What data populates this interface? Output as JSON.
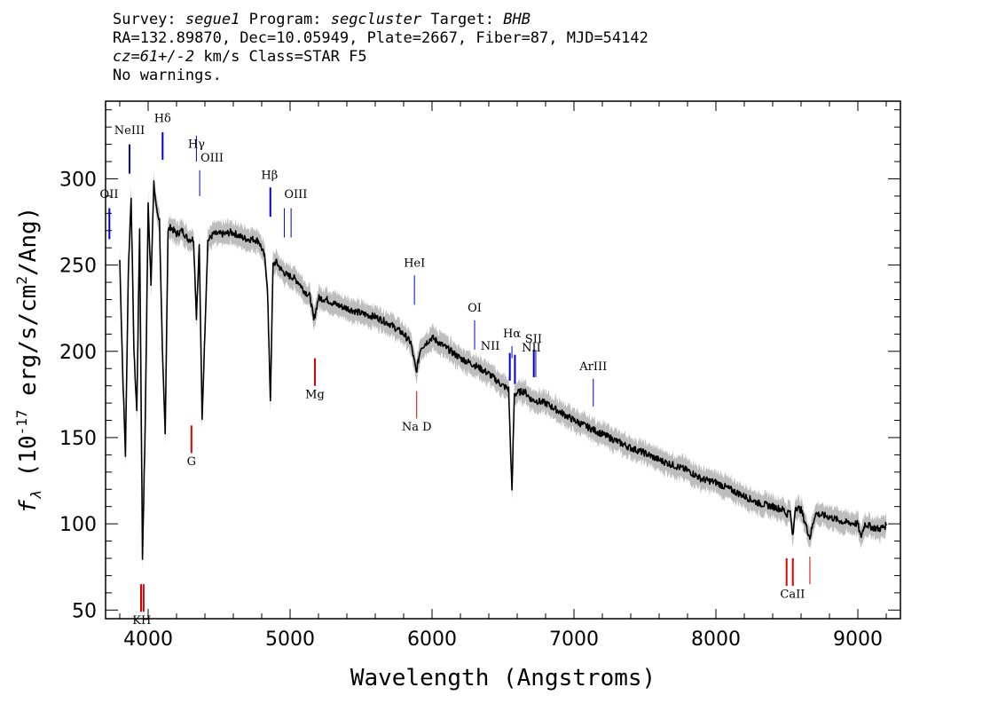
{
  "header": {
    "survey_label": "Survey:",
    "survey": "segue1",
    "program_label": "Program:",
    "program": "segcluster",
    "target_label": "Target:",
    "target": "BHB",
    "line2": "RA=132.89870, Dec=10.05949, Plate=2667, Fiber=87, MJD=54142",
    "redshift": "cz=61+/-2",
    "redshift_units": "km/s Class=STAR F5",
    "warnings": "No warnings."
  },
  "chart_data": {
    "type": "line",
    "title": "",
    "xlabel": "Wavelength (Angstroms)",
    "ylabel_prefix": "f",
    "ylabel_subscript": "λ",
    "ylabel_open": " (10",
    "ylabel_exp": "-17",
    "ylabel_mid": " erg/s/cm",
    "ylabel_exp2": "2",
    "ylabel_close": "/Ang)",
    "xlim": [
      3700,
      9300
    ],
    "ylim": [
      45,
      345
    ],
    "x_ticks": [
      4000,
      5000,
      6000,
      7000,
      8000,
      9000
    ],
    "x_tick_labels": [
      "4000",
      "5000",
      "6000",
      "7000",
      "8000",
      "9000"
    ],
    "y_ticks": [
      50,
      100,
      150,
      200,
      250,
      300
    ],
    "y_tick_labels": [
      "50",
      "100",
      "150",
      "200",
      "250",
      "300"
    ],
    "x_minor_step": 200,
    "y_minor_step": 10,
    "colors": {
      "spectrum": "#000000",
      "error_band": "#bdbdbd",
      "emission": "#0000cc",
      "absorption": "#dd0000"
    },
    "series": [
      {
        "x": [
          3800,
          3820,
          3840,
          3860,
          3880,
          3900,
          3920,
          3940,
          3960,
          3980,
          4000,
          4020,
          4040,
          4060,
          4080,
          4100,
          4120,
          4140,
          4160,
          4200,
          4240,
          4280,
          4320,
          4340,
          4360,
          4380,
          4420,
          4460,
          4500,
          4540,
          4580,
          4620,
          4660,
          4700,
          4740,
          4780,
          4820,
          4840,
          4861,
          4880,
          4900,
          4940,
          4980,
          5020,
          5060,
          5100,
          5140,
          5167,
          5200,
          5260,
          5300,
          5360,
          5400,
          5500,
          5600,
          5700,
          5800,
          5850,
          5889,
          5920,
          6000,
          6100,
          6200,
          6300,
          6400,
          6500,
          6540,
          6563,
          6580,
          6600,
          6650,
          6700,
          6800,
          6900,
          7000,
          7100,
          7200,
          7300,
          7400,
          7500,
          7600,
          7700,
          7800,
          7900,
          8000,
          8100,
          8200,
          8300,
          8400,
          8480,
          8498,
          8520,
          8542,
          8560,
          8600,
          8662,
          8700,
          8800,
          8900,
          9000,
          9020,
          9050,
          9100,
          9150,
          9200
        ],
        "y": [
          253,
          190,
          140,
          245,
          290,
          200,
          165,
          272,
          80,
          160,
          285,
          240,
          297,
          282,
          276,
          200,
          152,
          270,
          272,
          268,
          270,
          265,
          265,
          220,
          262,
          160,
          264,
          268,
          268,
          268,
          269,
          268,
          266,
          265,
          265,
          264,
          255,
          238,
          172,
          250,
          252,
          247,
          244,
          243,
          240,
          235,
          232,
          218,
          231,
          230,
          228,
          226,
          225,
          222,
          220,
          216,
          210,
          205,
          188,
          202,
          208,
          202,
          196,
          192,
          187,
          180,
          178,
          118,
          175,
          176,
          177,
          172,
          170,
          165,
          160,
          156,
          152,
          148,
          144,
          141,
          137,
          134,
          131,
          126,
          124,
          120,
          116,
          112,
          110,
          108,
          105,
          109,
          92,
          110,
          108,
          92,
          106,
          104,
          101,
          100,
          92,
          100,
          98,
          97,
          99
        ]
      }
    ],
    "line_markers": [
      {
        "label": "NeIII",
        "x": 3869,
        "y0": 303,
        "y1": 320,
        "color": "#0000cc",
        "w": 2,
        "lx": 3869,
        "ly": 326
      },
      {
        "label": "Hδ",
        "x": 4102,
        "y0": 311,
        "y1": 327,
        "color": "#0000cc",
        "w": 2,
        "lx": 4102,
        "ly": 333
      },
      {
        "label": "Hγ",
        "x": 4340,
        "y0": 310,
        "y1": 325,
        "color": "#0000cc",
        "w": 1,
        "lx": 4340,
        "ly": 318
      },
      {
        "label": "OIII",
        "x": 4363,
        "y0": 290,
        "y1": 305,
        "color": "#0000cc",
        "w": 1,
        "lx": 4450,
        "ly": 310
      },
      {
        "label": "Hβ",
        "x": 4861,
        "y0": 278,
        "y1": 295,
        "color": "#0000cc",
        "w": 2,
        "lx": 4855,
        "ly": 300
      },
      {
        "label": "OIII",
        "x": 4959,
        "y0": 266,
        "y1": 283,
        "color": "#0000cc",
        "w": 1,
        "lx": 5040,
        "ly": 289
      },
      {
        "label": "",
        "x": 5007,
        "y0": 266,
        "y1": 283,
        "color": "#0000cc",
        "w": 1,
        "lx": 0,
        "ly": 0
      },
      {
        "label": "OII",
        "x": 3727,
        "y0": 265,
        "y1": 283,
        "color": "#0000cc",
        "w": 2,
        "lx": 3725,
        "ly": 289
      },
      {
        "label": "HeI",
        "x": 5876,
        "y0": 227,
        "y1": 244,
        "color": "#0000cc",
        "w": 1,
        "lx": 5876,
        "ly": 249
      },
      {
        "label": "OI",
        "x": 6300,
        "y0": 201,
        "y1": 218,
        "color": "#0000cc",
        "w": 1,
        "lx": 6300,
        "ly": 223
      },
      {
        "label": "NII",
        "x": 6548,
        "y0": 183,
        "y1": 199,
        "color": "#0000cc",
        "w": 2,
        "lx": 6410,
        "ly": 201
      },
      {
        "label": "Hα",
        "x": 6563,
        "y0": 196,
        "y1": 203,
        "color": "#0000cc",
        "w": 1,
        "lx": 6563,
        "ly": 208
      },
      {
        "label": "",
        "x": 6584,
        "y0": 181,
        "y1": 198,
        "color": "#0000cc",
        "w": 2,
        "lx": 0,
        "ly": 0
      },
      {
        "label": "SII",
        "x": 6717,
        "y0": 185,
        "y1": 201,
        "color": "#0000cc",
        "w": 2,
        "lx": 6715,
        "ly": 205
      },
      {
        "label": "NII",
        "x": 6731,
        "y0": 185,
        "y1": 201,
        "color": "#0000cc",
        "w": 1,
        "lx": 6700,
        "ly": 200
      },
      {
        "label": "ArIII",
        "x": 7136,
        "y0": 168,
        "y1": 184,
        "color": "#0000cc",
        "w": 1,
        "lx": 7136,
        "ly": 189
      },
      {
        "label": "Mg",
        "x": 5175,
        "y0": 180,
        "y1": 196,
        "color": "#dd0000",
        "w": 2,
        "lx": 5175,
        "ly": 173
      },
      {
        "label": "Na D",
        "x": 5892,
        "y0": 161,
        "y1": 177,
        "color": "#dd0000",
        "w": 1,
        "lx": 5892,
        "ly": 154
      },
      {
        "label": "G",
        "x": 4305,
        "y0": 141,
        "y1": 157,
        "color": "#dd0000",
        "w": 2,
        "lx": 4305,
        "ly": 134
      },
      {
        "label": "KH",
        "x": 3950,
        "y0": 49,
        "y1": 65,
        "color": "#dd0000",
        "w": 2,
        "lx": 3955,
        "ly": 42
      },
      {
        "label": "",
        "x": 3968,
        "y0": 49,
        "y1": 65,
        "color": "#dd0000",
        "w": 2,
        "lx": 0,
        "ly": 0
      },
      {
        "label": "CaII",
        "x": 8498,
        "y0": 64,
        "y1": 80,
        "color": "#dd0000",
        "w": 2,
        "lx": 8540,
        "ly": 57
      },
      {
        "label": "",
        "x": 8542,
        "y0": 64,
        "y1": 80,
        "color": "#dd0000",
        "w": 2,
        "lx": 0,
        "ly": 0
      },
      {
        "label": "",
        "x": 8662,
        "y0": 65,
        "y1": 81,
        "color": "#dd0000",
        "w": 1,
        "lx": 0,
        "ly": 0
      }
    ]
  }
}
